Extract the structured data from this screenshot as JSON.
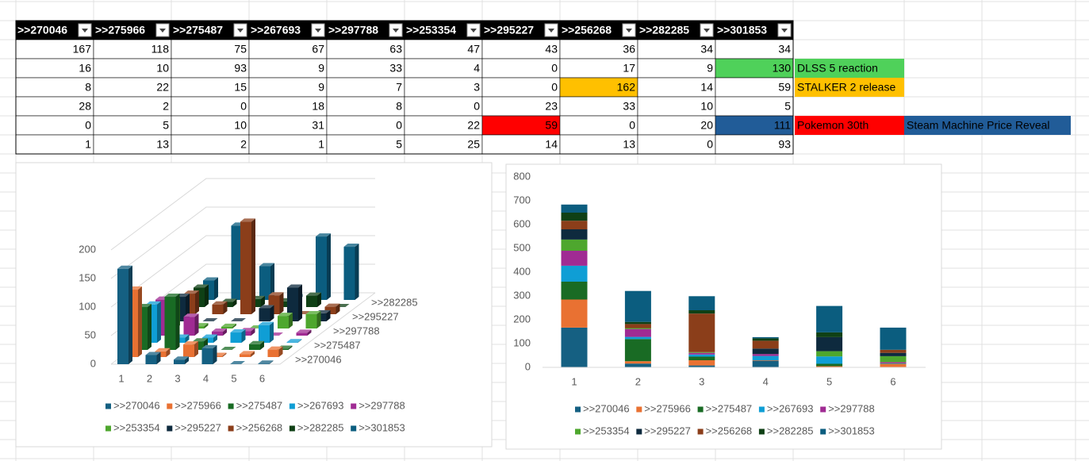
{
  "table": {
    "headers": [
      ">>270046",
      ">>275966",
      ">>275487",
      ">>267693",
      ">>297788",
      ">>253354",
      ">>295227",
      ">>256268",
      ">>282285",
      ">>301853"
    ],
    "rows": [
      [
        167,
        118,
        75,
        67,
        63,
        47,
        43,
        36,
        34,
        34
      ],
      [
        16,
        10,
        93,
        9,
        33,
        4,
        0,
        17,
        9,
        130
      ],
      [
        8,
        22,
        15,
        9,
        7,
        3,
        0,
        162,
        14,
        59
      ],
      [
        28,
        2,
        0,
        18,
        8,
        0,
        23,
        33,
        10,
        5
      ],
      [
        0,
        5,
        10,
        31,
        0,
        22,
        59,
        0,
        20,
        111
      ],
      [
        1,
        13,
        2,
        1,
        5,
        25,
        14,
        13,
        0,
        93
      ]
    ],
    "notes": [
      [],
      [
        {
          "text": "DLSS 5 reaction",
          "color": "#4fd15a"
        }
      ],
      [
        {
          "text": "STALKER 2 release",
          "color": "#ffc000"
        }
      ],
      [],
      [
        {
          "text": "Pokemon 30th",
          "color": "#ff0000"
        },
        {
          "text": "Steam Machine Price Reveal",
          "color": "#215c98"
        }
      ],
      []
    ]
  },
  "chart_data": [
    {
      "type": "bar3d",
      "categories": [
        "1",
        "2",
        "3",
        "4",
        "5",
        "6"
      ],
      "series": [
        {
          "name": ">>270046",
          "color": "#156082",
          "values": [
            167,
            16,
            8,
            28,
            0,
            1
          ]
        },
        {
          "name": ">>275966",
          "color": "#e97132",
          "values": [
            118,
            10,
            22,
            2,
            5,
            13
          ]
        },
        {
          "name": ">>275487",
          "color": "#196b24",
          "values": [
            75,
            93,
            15,
            0,
            10,
            2
          ]
        },
        {
          "name": ">>267693",
          "color": "#0f9ed5",
          "values": [
            67,
            9,
            9,
            18,
            31,
            1
          ]
        },
        {
          "name": ">>297788",
          "color": "#a02b93",
          "values": [
            63,
            33,
            7,
            8,
            0,
            5
          ]
        },
        {
          "name": ">>253354",
          "color": "#4ea72e",
          "values": [
            47,
            4,
            3,
            0,
            22,
            25
          ]
        },
        {
          "name": ">>295227",
          "color": "#0e2a3e",
          "values": [
            43,
            0,
            0,
            23,
            59,
            14
          ]
        },
        {
          "name": ">>256268",
          "color": "#8b3e1a",
          "values": [
            36,
            17,
            162,
            33,
            0,
            13
          ]
        },
        {
          "name": ">>282285",
          "color": "#0f4015",
          "values": [
            34,
            9,
            14,
            10,
            20,
            0
          ]
        },
        {
          "name": ">>301853",
          "color": "#0b5d7f",
          "values": [
            34,
            130,
            59,
            5,
            111,
            93
          ]
        }
      ],
      "ylim": [
        0,
        200
      ],
      "yticks": [
        0,
        50,
        100,
        150,
        200
      ],
      "grid": true,
      "legend": "bottom"
    },
    {
      "type": "stacked_bar",
      "categories": [
        "1",
        "2",
        "3",
        "4",
        "5",
        "6"
      ],
      "series": [
        {
          "name": ">>270046",
          "color": "#156082",
          "values": [
            167,
            16,
            8,
            28,
            0,
            1
          ]
        },
        {
          "name": ">>275966",
          "color": "#e97132",
          "values": [
            118,
            10,
            22,
            2,
            5,
            13
          ]
        },
        {
          "name": ">>275487",
          "color": "#196b24",
          "values": [
            75,
            93,
            15,
            0,
            10,
            2
          ]
        },
        {
          "name": ">>267693",
          "color": "#0f9ed5",
          "values": [
            67,
            9,
            9,
            18,
            31,
            1
          ]
        },
        {
          "name": ">>297788",
          "color": "#a02b93",
          "values": [
            63,
            33,
            7,
            8,
            0,
            5
          ]
        },
        {
          "name": ">>253354",
          "color": "#4ea72e",
          "values": [
            47,
            4,
            3,
            0,
            22,
            25
          ]
        },
        {
          "name": ">>295227",
          "color": "#0e2a3e",
          "values": [
            43,
            0,
            0,
            23,
            59,
            14
          ]
        },
        {
          "name": ">>256268",
          "color": "#8b3e1a",
          "values": [
            36,
            17,
            162,
            33,
            0,
            13
          ]
        },
        {
          "name": ">>282285",
          "color": "#0f4015",
          "values": [
            34,
            9,
            14,
            10,
            20,
            0
          ]
        },
        {
          "name": ">>301853",
          "color": "#0b5d7f",
          "values": [
            34,
            130,
            59,
            5,
            111,
            93
          ]
        }
      ],
      "ylim": [
        0,
        800
      ],
      "yticks": [
        0,
        100,
        200,
        300,
        400,
        500,
        600,
        700,
        800
      ],
      "grid": false,
      "legend": "bottom"
    }
  ]
}
